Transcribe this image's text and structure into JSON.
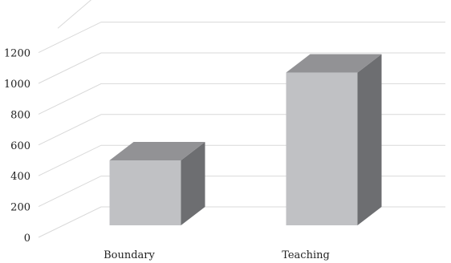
{
  "chart_data": {
    "type": "bar",
    "categories": [
      "Boundary",
      "Teaching"
    ],
    "values": [
      500,
      1070
    ],
    "ylim": [
      0,
      1200
    ],
    "yticks": [
      0,
      200,
      400,
      600,
      800,
      1000,
      1200
    ],
    "grid": true,
    "style": "3d-column",
    "colors": {
      "front": "#c0c1c4",
      "top": "#929295",
      "side": "#6d6e71",
      "grid": "#d9d9d9"
    }
  }
}
